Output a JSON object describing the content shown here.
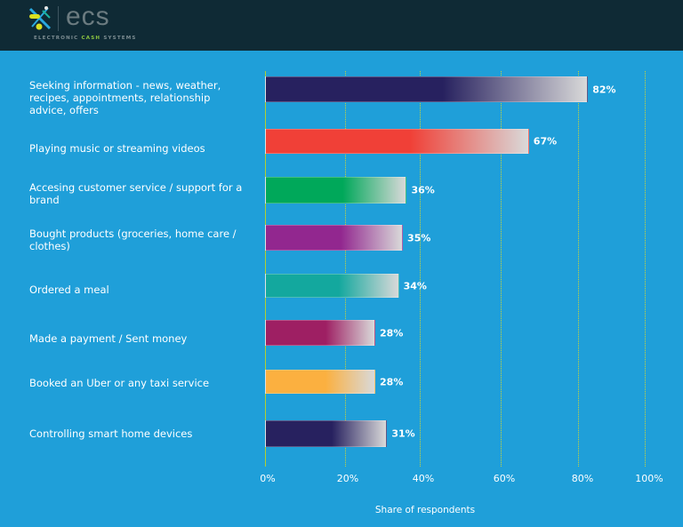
{
  "header": {
    "logo_word": "ecs",
    "logo_sub_1": "ELECTRONIC ",
    "logo_sub_2": "CASH",
    "logo_sub_3": " SYSTEMS"
  },
  "chart_data": {
    "type": "bar",
    "orientation": "horizontal",
    "categories": [
      "Seeking information - news, weather, recipes, appointments, relationship advice, offers",
      "Playing music or streaming videos",
      "Accesing customer service / support for a brand",
      "Bought products (groceries, home care / clothes)",
      "Ordered a meal",
      "Made a payment / Sent money",
      "Booked an Uber or any taxi service",
      "Controlling smart home devices"
    ],
    "values": [
      82,
      67,
      36,
      35,
      34,
      28,
      28,
      31
    ],
    "value_labels": [
      "82%",
      "67%",
      "36%",
      "35%",
      "34%",
      "28%",
      "28%",
      "31%"
    ],
    "colors": [
      "#27215f",
      "#f04037",
      "#00a85a",
      "#92278f",
      "#13a89e",
      "#9e1f63",
      "#fbb040",
      "#27215f"
    ],
    "xlim": [
      0,
      100
    ],
    "xticks": [
      "0%",
      "20%",
      "40%",
      "60%",
      "80%",
      "100%"
    ],
    "xlabel": "Share of respondents",
    "ylabel": "",
    "grid": true,
    "grid_color": "#c8d33a",
    "background": "#1f9fd9"
  }
}
